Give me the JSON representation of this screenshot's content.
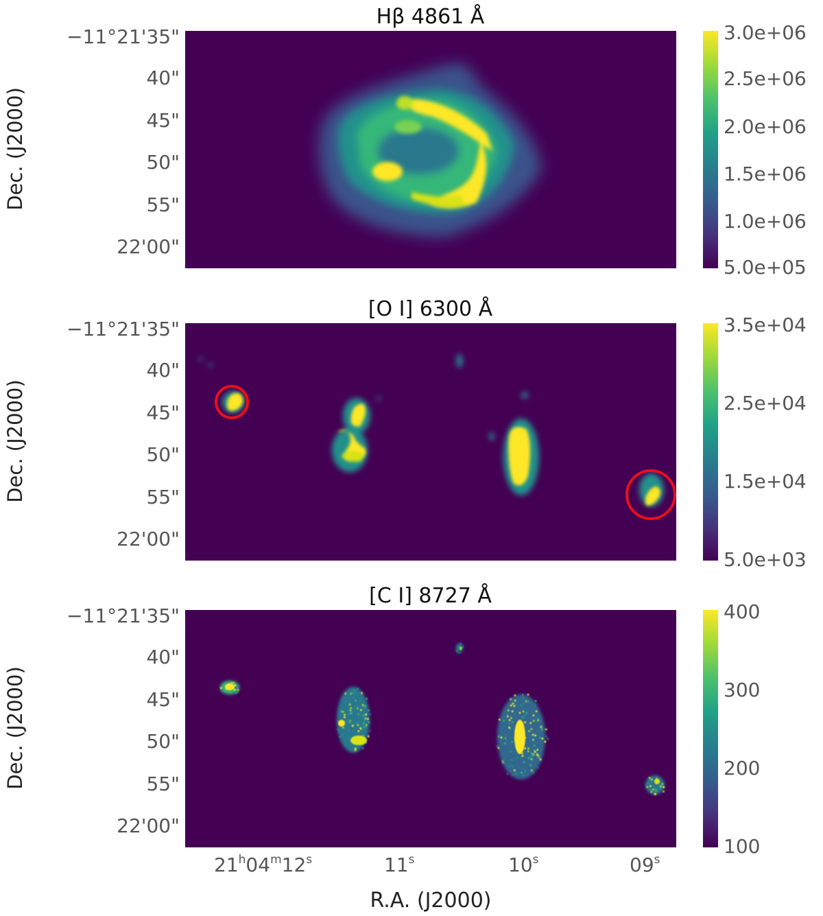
{
  "panels": [
    {
      "title": "Hβ 4861 Å",
      "y_ticks": [
        "−11°21'35\"",
        "40\"",
        "45\"",
        "50\"",
        "55\"",
        "22'00\""
      ],
      "y_label": "Dec. (J2000)",
      "colorbar_ticks": [
        "3.0e+06",
        "2.5e+06",
        "2.0e+06",
        "1.5e+06",
        "1.0e+06",
        "5.0e+05"
      ],
      "colorbar_range": [
        500000,
        3000000
      ]
    },
    {
      "title": "[O I] 6300 Å",
      "y_ticks": [
        "−11°21'35\"",
        "40\"",
        "45\"",
        "50\"",
        "55\"",
        "22'00\""
      ],
      "y_label": "Dec. (J2000)",
      "colorbar_ticks": [
        "3.5e+04",
        "2.5e+04",
        "1.5e+04",
        "5.0e+03"
      ],
      "colorbar_range": [
        5000,
        35000
      ]
    },
    {
      "title": "[C I] 8727 Å",
      "y_ticks": [
        "−11°21'35\"",
        "40\"",
        "45\"",
        "50\"",
        "55\"",
        "22'00\""
      ],
      "y_label": "Dec. (J2000)",
      "colorbar_ticks": [
        "400",
        "300",
        "200",
        "100"
      ],
      "colorbar_range": [
        100,
        400
      ]
    }
  ],
  "x_axis": {
    "label": "R.A. (J2000)",
    "ticks": [
      {
        "main": "21",
        "h": "h",
        "m_main": "04",
        "m": "m",
        "s_main": "12",
        "s": "s"
      },
      {
        "main": "11",
        "s": "s"
      },
      {
        "main": "10",
        "s": "s"
      },
      {
        "main": "09",
        "s": "s"
      }
    ]
  },
  "colors": {
    "background": "#440154",
    "low": "#46327e",
    "mid": "#277f8e",
    "high_mid": "#4ac16d",
    "peak": "#fde725",
    "marker": "#e8101a"
  }
}
